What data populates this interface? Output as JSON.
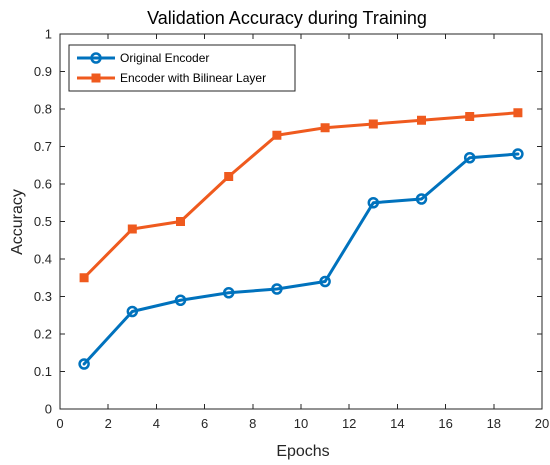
{
  "chart_data": {
    "type": "line",
    "title": "Validation Accuracy during Training",
    "xlabel": "Epochs",
    "ylabel": "Accuracy",
    "xlim": [
      0,
      20
    ],
    "ylim": [
      0,
      1
    ],
    "xticks": [
      0,
      2,
      4,
      6,
      8,
      10,
      12,
      14,
      16,
      18,
      20
    ],
    "yticks": [
      0,
      0.1,
      0.2,
      0.3,
      0.4,
      0.5,
      0.6,
      0.7,
      0.8,
      0.9,
      1
    ],
    "xtick_labels": [
      "0",
      "2",
      "4",
      "6",
      "8",
      "10",
      "12",
      "14",
      "16",
      "18",
      "20"
    ],
    "ytick_labels": [
      "0",
      "0.1",
      "0.2",
      "0.3",
      "0.4",
      "0.5",
      "0.6",
      "0.7",
      "0.8",
      "0.9",
      "1"
    ],
    "grid": false,
    "legend_position": "top-left",
    "series": [
      {
        "name": "Original Encoder",
        "color": "#0072BD",
        "marker": "circle",
        "x": [
          1,
          3,
          5,
          7,
          9,
          11,
          13,
          15,
          17,
          19
        ],
        "y": [
          0.12,
          0.26,
          0.29,
          0.31,
          0.32,
          0.34,
          0.55,
          0.56,
          0.67,
          0.68
        ]
      },
      {
        "name": "Encoder with Bilinear Layer",
        "color": "#EF5A1E",
        "marker": "square",
        "x": [
          1,
          3,
          5,
          7,
          9,
          11,
          13,
          15,
          17,
          19
        ],
        "y": [
          0.35,
          0.48,
          0.5,
          0.62,
          0.73,
          0.75,
          0.76,
          0.77,
          0.78,
          0.79
        ]
      }
    ]
  }
}
